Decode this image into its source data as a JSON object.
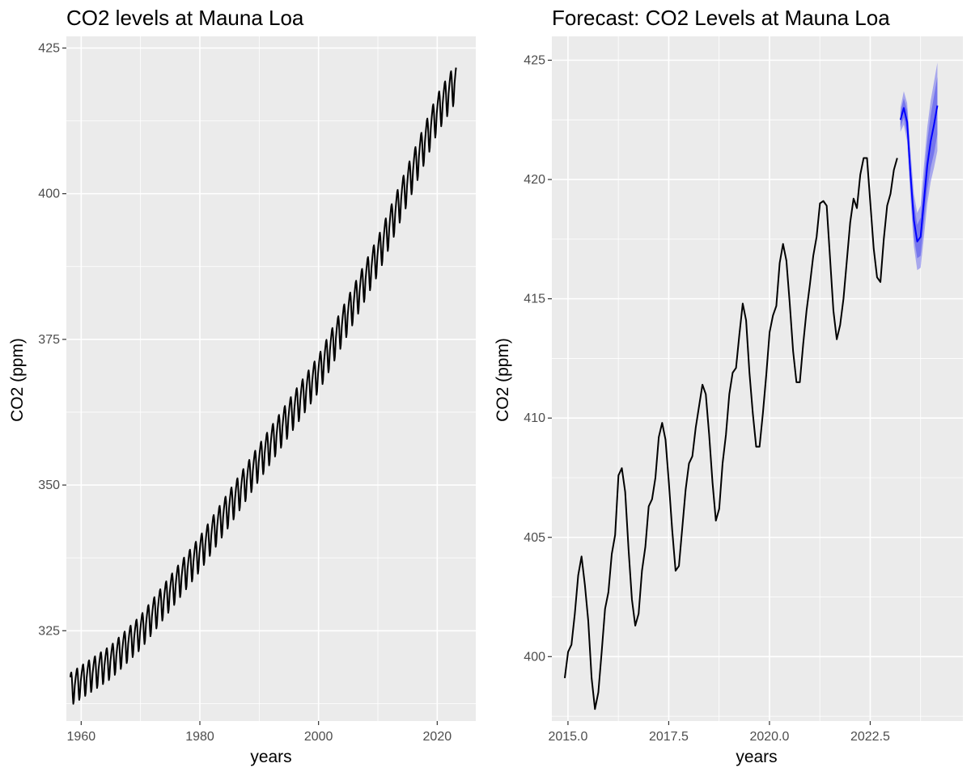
{
  "chart_data": [
    {
      "type": "line",
      "title": "CO2 levels at  Mauna Loa",
      "xlabel": "years",
      "ylabel": "CO2 (ppm)",
      "xlim": [
        1957.5,
        2026.5
      ],
      "ylim": [
        309.5,
        427
      ],
      "x_ticks": [
        1960,
        1980,
        2000,
        2020
      ],
      "x_tick_labels": [
        "1960",
        "1980",
        "2000",
        "2020"
      ],
      "y_ticks": [
        325,
        350,
        375,
        400,
        425
      ],
      "y_tick_labels": [
        "325",
        "350",
        "375",
        "400",
        "425"
      ],
      "grid": true,
      "series": [
        {
          "color": "#000000",
          "x_start": 1958.17,
          "x_step": 0.083333,
          "trend": [
            [
              1958,
              314.8
            ],
            [
              1965,
              319.6
            ],
            [
              1970,
              324.7
            ],
            [
              1980,
              338.2
            ],
            [
              1990,
              353.9
            ],
            [
              2000,
              369.1
            ],
            [
              2010,
              389.3
            ],
            [
              2020,
              413.7
            ],
            [
              2023.25,
              419.3
            ]
          ],
          "seasonal_amplitude": [
            [
              1958,
              2.8
            ],
            [
              2023.25,
              3.3
            ]
          ],
          "seasonal_peak_month": 5
        }
      ]
    },
    {
      "type": "line",
      "title": "Forecast: CO2  Levels at Mauna Loa",
      "xlabel": "years",
      "ylabel": "CO2 (ppm)",
      "xlim": [
        2014.6,
        2024.8
      ],
      "ylim": [
        397.3,
        426
      ],
      "x_ticks": [
        2015.0,
        2017.5,
        2020.0,
        2022.5
      ],
      "x_tick_labels": [
        "2015.0",
        "2017.5",
        "2020.0",
        "2022.5"
      ],
      "y_ticks": [
        400,
        405,
        410,
        415,
        420,
        425
      ],
      "y_tick_labels": [
        "400",
        "405",
        "410",
        "415",
        "420",
        "425"
      ],
      "grid": true,
      "series": [
        {
          "color": "#000000",
          "x_start": 2014.92,
          "x_step": 0.083333,
          "values": [
            399.1,
            400.2,
            400.5,
            401.8,
            403.4,
            404.2,
            403.0,
            401.5,
            399.1,
            397.8,
            398.5,
            400.2,
            402.0,
            402.7,
            404.3,
            405.1,
            407.6,
            407.9,
            406.9,
            404.5,
            402.4,
            401.3,
            401.8,
            403.6,
            404.6,
            406.3,
            406.6,
            407.5,
            409.2,
            409.8,
            409.1,
            407.3,
            405.3,
            403.6,
            403.8,
            405.4,
            407.0,
            408.1,
            408.4,
            409.6,
            410.5,
            411.4,
            411.0,
            409.3,
            407.3,
            405.7,
            406.2,
            408.1,
            409.3,
            411.0,
            411.9,
            412.1,
            413.5,
            414.8,
            414.1,
            411.9,
            410.2,
            408.8,
            408.8,
            410.2,
            411.8,
            413.6,
            414.3,
            414.7,
            416.5,
            417.3,
            416.6,
            414.8,
            412.8,
            411.5,
            411.5,
            413.1,
            414.5,
            415.6,
            416.8,
            417.6,
            419.0,
            419.1,
            418.9,
            416.7,
            414.5,
            413.3,
            413.9,
            415.0,
            416.6,
            418.2,
            419.2,
            418.8,
            420.2,
            420.9,
            420.9,
            419.0,
            417.1,
            415.9,
            415.7,
            417.5,
            418.9,
            419.4,
            420.4,
            420.9
          ]
        },
        {
          "color": "#0000ff",
          "band_color": "#5555ee",
          "x_start": 2023.25,
          "x_step": 0.083333,
          "values": [
            422.5,
            423.0,
            422.4,
            420.2,
            418.3,
            417.4,
            417.6,
            419.1,
            420.6,
            421.6,
            422.3,
            423.1
          ],
          "lower_80": [
            422.2,
            422.6,
            421.9,
            419.6,
            417.6,
            416.7,
            416.8,
            418.2,
            419.6,
            420.5,
            421.1,
            421.9
          ],
          "upper_80": [
            422.8,
            423.4,
            422.9,
            420.8,
            419.0,
            418.1,
            418.4,
            420.0,
            421.6,
            422.7,
            423.5,
            424.3
          ],
          "lower_95": [
            422.0,
            422.3,
            421.6,
            419.2,
            417.2,
            416.2,
            416.3,
            417.6,
            419.0,
            419.9,
            420.5,
            421.2
          ],
          "upper_95": [
            423.0,
            423.7,
            423.2,
            421.2,
            419.4,
            418.6,
            418.9,
            420.6,
            422.2,
            423.3,
            424.1,
            424.9
          ]
        }
      ]
    }
  ]
}
